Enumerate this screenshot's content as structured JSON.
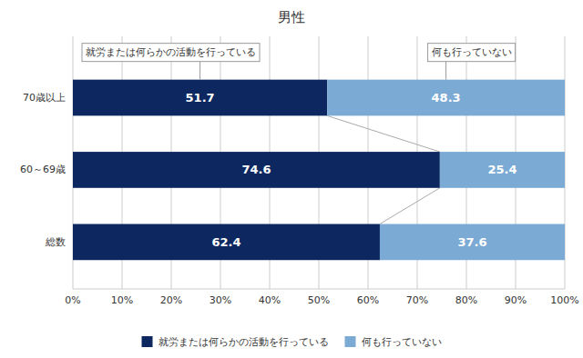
{
  "chart_data": {
    "type": "bar",
    "orientation": "horizontal",
    "stacked": true,
    "title": "男性",
    "categories": [
      "総数",
      "60～69歳",
      "70歳以上"
    ],
    "series": [
      {
        "name": "就労または何らかの活動を行っている",
        "color": "#0D2860",
        "values": [
          62.4,
          74.6,
          51.7
        ]
      },
      {
        "name": "何も行っていない",
        "color": "#7BAAD4",
        "values": [
          37.6,
          25.4,
          48.3
        ]
      }
    ],
    "xlim": [
      0,
      100
    ],
    "xticks": [
      {
        "value": 0,
        "label": "0%"
      },
      {
        "value": 10,
        "label": "10%"
      },
      {
        "value": 20,
        "label": "20%"
      },
      {
        "value": 30,
        "label": "30%"
      },
      {
        "value": 40,
        "label": "40%"
      },
      {
        "value": 50,
        "label": "50%"
      },
      {
        "value": 60,
        "label": "60%"
      },
      {
        "value": 70,
        "label": "70%"
      },
      {
        "value": 80,
        "label": "80%"
      },
      {
        "value": 90,
        "label": "90%"
      },
      {
        "value": 100,
        "label": "100%"
      }
    ],
    "grid": true,
    "data_labels": true,
    "legend": "bottom",
    "annotations": [
      "就労または何らかの活動を行っている",
      "何も行っていない"
    ]
  }
}
